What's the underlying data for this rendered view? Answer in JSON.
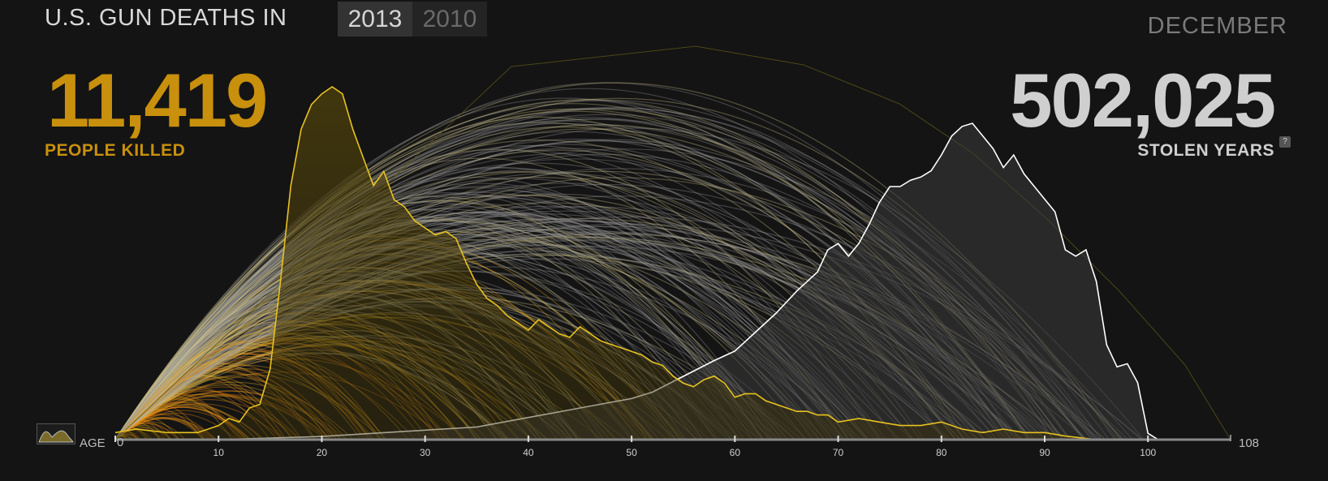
{
  "header": {
    "title": "U.S. GUN DEATHS IN",
    "years": [
      {
        "label": "2013",
        "active": true
      },
      {
        "label": "2010",
        "active": false
      }
    ],
    "month": "DECEMBER"
  },
  "stats": {
    "killed_value": "11,419",
    "killed_label": "PEOPLE KILLED",
    "stolen_value": "502,025",
    "stolen_label": "STOLEN YEARS",
    "help_label": "?"
  },
  "axis": {
    "label": "AGE",
    "max_label": "108",
    "min": 0,
    "max": 108,
    "ticks": [
      0,
      10,
      20,
      30,
      40,
      50,
      60,
      70,
      80,
      90,
      100
    ]
  },
  "colors": {
    "killed": "#c8900c",
    "stolen": "#cfcfcf",
    "arc_warm": "#f08a10",
    "arc_gold": "#f2b21c",
    "arc_pale": "#d8cc90",
    "arc_gray": "#9a9a9a",
    "age_line": "#e8c220",
    "expected_line": "#ffffff"
  },
  "chart_data": {
    "type": "area",
    "x_label": "AGE",
    "xlim": [
      0,
      108
    ],
    "series": [
      {
        "key": "age_at_death",
        "color": "#e8c220",
        "points": [
          [
            0,
            0.02
          ],
          [
            2,
            0.03
          ],
          [
            5,
            0.02
          ],
          [
            8,
            0.02
          ],
          [
            10,
            0.04
          ],
          [
            11,
            0.06
          ],
          [
            12,
            0.05
          ],
          [
            13,
            0.09
          ],
          [
            14,
            0.1
          ],
          [
            15,
            0.2
          ],
          [
            16,
            0.45
          ],
          [
            17,
            0.72
          ],
          [
            18,
            0.88
          ],
          [
            19,
            0.95
          ],
          [
            20,
            0.98
          ],
          [
            21,
            1.0
          ],
          [
            22,
            0.98
          ],
          [
            23,
            0.88
          ],
          [
            24,
            0.8
          ],
          [
            25,
            0.72
          ],
          [
            26,
            0.76
          ],
          [
            27,
            0.68
          ],
          [
            28,
            0.66
          ],
          [
            29,
            0.62
          ],
          [
            30,
            0.6
          ],
          [
            31,
            0.58
          ],
          [
            32,
            0.59
          ],
          [
            33,
            0.57
          ],
          [
            34,
            0.5
          ],
          [
            35,
            0.44
          ],
          [
            36,
            0.4
          ],
          [
            37,
            0.38
          ],
          [
            38,
            0.35
          ],
          [
            39,
            0.33
          ],
          [
            40,
            0.31
          ],
          [
            41,
            0.34
          ],
          [
            42,
            0.32
          ],
          [
            43,
            0.3
          ],
          [
            44,
            0.29
          ],
          [
            45,
            0.32
          ],
          [
            46,
            0.3
          ],
          [
            47,
            0.28
          ],
          [
            48,
            0.27
          ],
          [
            49,
            0.26
          ],
          [
            50,
            0.25
          ],
          [
            51,
            0.24
          ],
          [
            52,
            0.22
          ],
          [
            53,
            0.21
          ],
          [
            54,
            0.18
          ],
          [
            55,
            0.16
          ],
          [
            56,
            0.15
          ],
          [
            57,
            0.17
          ],
          [
            58,
            0.18
          ],
          [
            59,
            0.16
          ],
          [
            60,
            0.12
          ],
          [
            61,
            0.13
          ],
          [
            62,
            0.13
          ],
          [
            63,
            0.11
          ],
          [
            64,
            0.1
          ],
          [
            65,
            0.09
          ],
          [
            66,
            0.08
          ],
          [
            67,
            0.08
          ],
          [
            68,
            0.07
          ],
          [
            69,
            0.07
          ],
          [
            70,
            0.05
          ],
          [
            72,
            0.06
          ],
          [
            74,
            0.05
          ],
          [
            76,
            0.04
          ],
          [
            78,
            0.04
          ],
          [
            80,
            0.05
          ],
          [
            82,
            0.03
          ],
          [
            84,
            0.02
          ],
          [
            86,
            0.03
          ],
          [
            88,
            0.02
          ],
          [
            90,
            0.02
          ],
          [
            92,
            0.01
          ],
          [
            95,
            0.0
          ],
          [
            100,
            0.0
          ],
          [
            108,
            0.0
          ]
        ]
      },
      {
        "key": "expected_age",
        "color": "#ffffff",
        "points": [
          [
            0,
            0.0
          ],
          [
            10,
            0.0
          ],
          [
            15,
            0.005
          ],
          [
            20,
            0.01
          ],
          [
            25,
            0.02
          ],
          [
            30,
            0.03
          ],
          [
            35,
            0.04
          ],
          [
            40,
            0.07
          ],
          [
            45,
            0.1
          ],
          [
            50,
            0.13
          ],
          [
            52,
            0.15
          ],
          [
            55,
            0.2
          ],
          [
            58,
            0.25
          ],
          [
            60,
            0.28
          ],
          [
            62,
            0.34
          ],
          [
            64,
            0.4
          ],
          [
            66,
            0.47
          ],
          [
            68,
            0.53
          ],
          [
            69,
            0.6
          ],
          [
            70,
            0.62
          ],
          [
            71,
            0.58
          ],
          [
            72,
            0.62
          ],
          [
            73,
            0.68
          ],
          [
            74,
            0.75
          ],
          [
            75,
            0.8
          ],
          [
            76,
            0.8
          ],
          [
            77,
            0.82
          ],
          [
            78,
            0.83
          ],
          [
            79,
            0.85
          ],
          [
            80,
            0.9
          ],
          [
            81,
            0.96
          ],
          [
            82,
            0.99
          ],
          [
            83,
            1.0
          ],
          [
            84,
            0.96
          ],
          [
            85,
            0.92
          ],
          [
            86,
            0.86
          ],
          [
            87,
            0.9
          ],
          [
            88,
            0.84
          ],
          [
            89,
            0.8
          ],
          [
            90,
            0.76
          ],
          [
            91,
            0.72
          ],
          [
            92,
            0.6
          ],
          [
            93,
            0.58
          ],
          [
            94,
            0.6
          ],
          [
            95,
            0.5
          ],
          [
            96,
            0.3
          ],
          [
            97,
            0.23
          ],
          [
            98,
            0.24
          ],
          [
            99,
            0.18
          ],
          [
            100,
            0.02
          ],
          [
            101,
            0.0
          ],
          [
            108,
            0.0
          ]
        ]
      }
    ]
  }
}
